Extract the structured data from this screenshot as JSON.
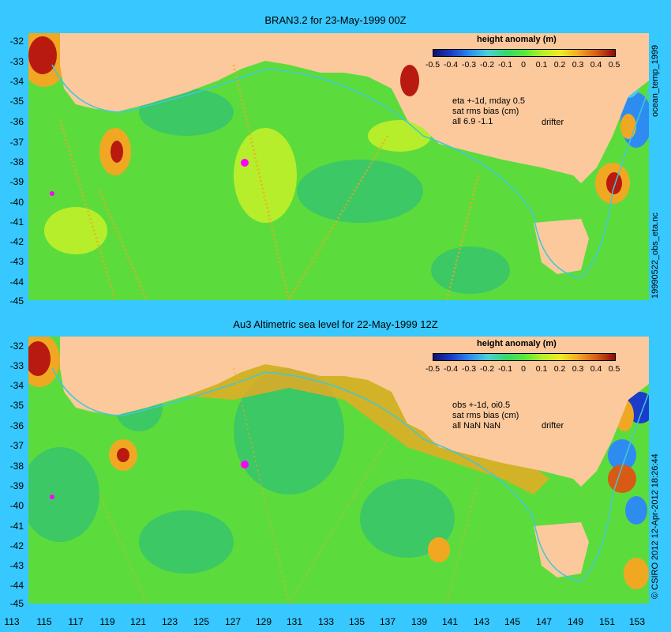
{
  "panels": [
    {
      "title": "BRAN3.2 for 23-May-1999 00Z",
      "colorbar_title": "height anomaly (m)",
      "annotation": [
        "eta +-1d, mday 0.5",
        "sat rms bias (cm)",
        "all 6.9 -1.1"
      ],
      "drifter_label": "drifter",
      "side_label": "19990522_obs_eta.nc",
      "right_label": "ocean_temp_1999"
    },
    {
      "title": "Au3 Altimetric sea level  for 22-May-1999 12Z",
      "colorbar_title": "height anomaly (m)",
      "annotation": [
        "obs +-1d, oi0.5",
        "sat rms bias (cm)",
        "all NaN NaN"
      ],
      "drifter_label": "drifter",
      "side_label": "© CSIRO 2012  12-Apr-2012 18:26:44"
    }
  ],
  "colorbar_ticks": [
    "-0.5",
    "-0.4",
    "-0.3",
    "-0.2",
    "-0.1",
    "0",
    "0.1",
    "0.2",
    "0.3",
    "0.4",
    "0.5"
  ],
  "y_ticks": [
    "-32",
    "-33",
    "-34",
    "-35",
    "-36",
    "-37",
    "-38",
    "-39",
    "-40",
    "-41",
    "-42",
    "-43",
    "-44",
    "-45"
  ],
  "x_ticks": [
    "113",
    "115",
    "117",
    "119",
    "121",
    "123",
    "125",
    "127",
    "129",
    "131",
    "133",
    "135",
    "137",
    "139",
    "141",
    "143",
    "145",
    "147",
    "149",
    "151",
    "153"
  ],
  "colors": {
    "background": "#36c8ff",
    "land": "#fcc99c",
    "ocean_base": "#59dc3a",
    "drifter": "#ff00ff",
    "current": "#40c8d8"
  }
}
